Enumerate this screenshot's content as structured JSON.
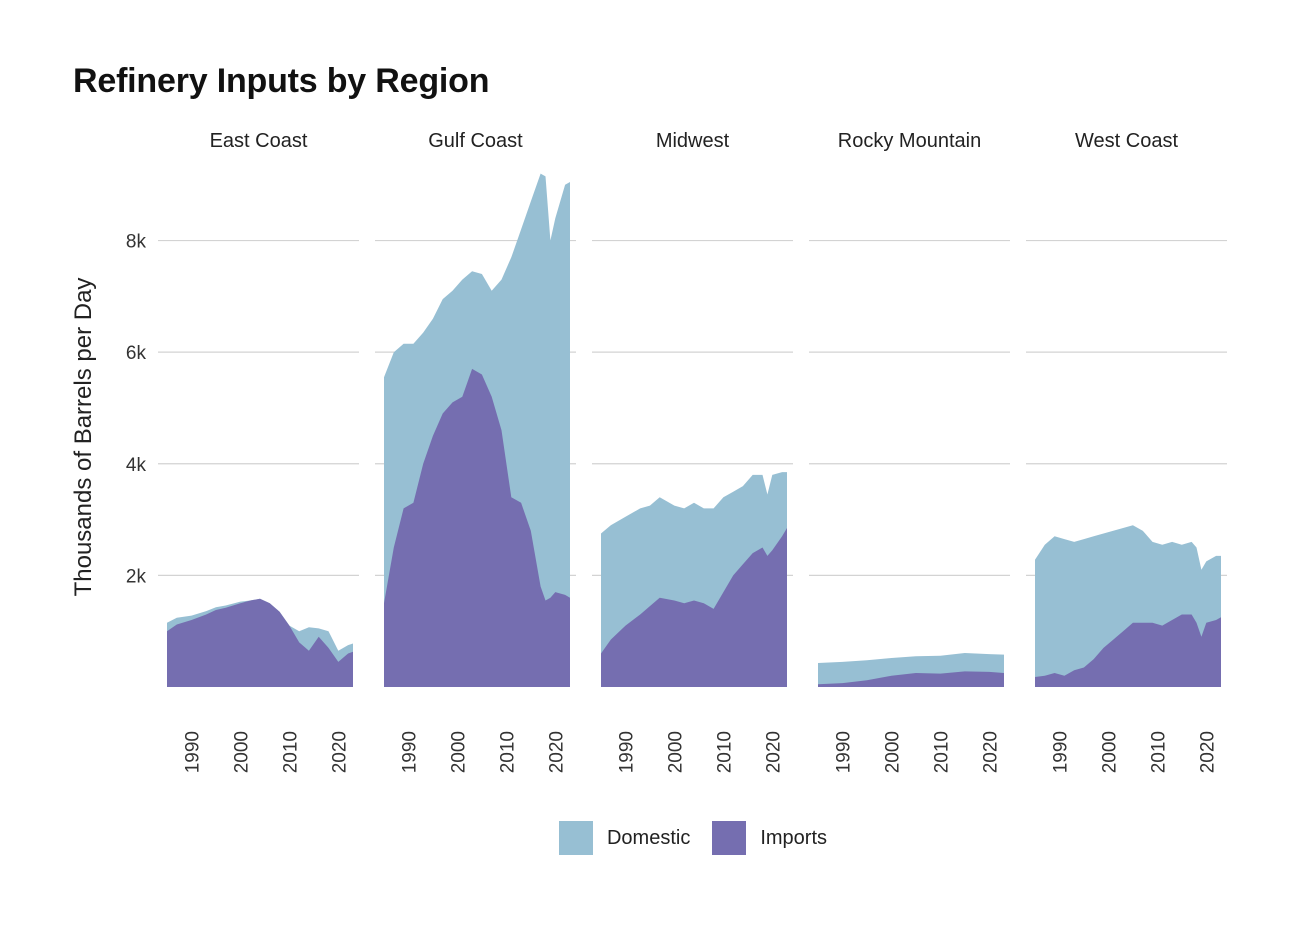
{
  "page": {
    "title": "Refinery Inputs by Region"
  },
  "chart_data": {
    "type": "area",
    "stacked": true,
    "title": "Refinery Inputs by Region",
    "ylabel": "Thousands of Barrels per Day",
    "xlabel": "",
    "ylim": [
      0,
      9300
    ],
    "yticks": [
      2000,
      4000,
      6000,
      8000
    ],
    "ytick_labels": [
      "2k",
      "4k",
      "6k",
      "8k"
    ],
    "xlim": [
      1985,
      2023
    ],
    "xticks": [
      1990,
      2000,
      2010,
      2020
    ],
    "xtick_labels": [
      "1990",
      "2000",
      "2010",
      "2020"
    ],
    "grid": true,
    "legend_position": "bottom",
    "colors": {
      "Domestic": "#97bfd3",
      "Imports": "#756eb0"
    },
    "legend": [
      "Domestic",
      "Imports"
    ],
    "series_order_bottom_to_top": [
      "Imports",
      "Domestic"
    ],
    "facets": [
      {
        "name": "East Coast",
        "years": [
          1985,
          1987,
          1990,
          1993,
          1995,
          1997,
          2000,
          2002,
          2004,
          2006,
          2008,
          2010,
          2012,
          2014,
          2016,
          2018,
          2020,
          2022,
          2023
        ],
        "imports": [
          1000,
          1120,
          1200,
          1300,
          1380,
          1420,
          1500,
          1550,
          1580,
          1500,
          1350,
          1100,
          800,
          650,
          900,
          700,
          450,
          600,
          630
        ],
        "domestic": [
          150,
          120,
          80,
          60,
          50,
          40,
          30,
          0,
          0,
          0,
          0,
          0,
          200,
          420,
          150,
          300,
          200,
          150,
          150
        ]
      },
      {
        "name": "Gulf Coast",
        "years": [
          1985,
          1987,
          1989,
          1991,
          1993,
          1995,
          1997,
          1999,
          2001,
          2003,
          2005,
          2007,
          2009,
          2011,
          2013,
          2015,
          2017,
          2018,
          2019,
          2020,
          2022,
          2023
        ],
        "imports": [
          1500,
          2500,
          3200,
          3300,
          4000,
          4500,
          4900,
          5100,
          5200,
          5700,
          5600,
          5200,
          4600,
          3400,
          3300,
          2800,
          1800,
          1550,
          1600,
          1700,
          1650,
          1600
        ],
        "domestic": [
          4050,
          3500,
          2950,
          2850,
          2350,
          2100,
          2050,
          2000,
          2100,
          1750,
          1800,
          1900,
          2700,
          4300,
          4900,
          5900,
          7400,
          7600,
          6400,
          6700,
          7350,
          7450
        ]
      },
      {
        "name": "Midwest",
        "years": [
          1985,
          1987,
          1990,
          1993,
          1995,
          1997,
          2000,
          2002,
          2004,
          2006,
          2008,
          2010,
          2012,
          2014,
          2016,
          2018,
          2019,
          2020,
          2022,
          2023
        ],
        "imports": [
          600,
          850,
          1100,
          1300,
          1450,
          1600,
          1550,
          1500,
          1550,
          1500,
          1400,
          1700,
          2000,
          2200,
          2400,
          2500,
          2350,
          2450,
          2700,
          2850
        ],
        "domestic": [
          2150,
          2050,
          1950,
          1900,
          1800,
          1800,
          1700,
          1700,
          1750,
          1700,
          1800,
          1700,
          1500,
          1400,
          1400,
          1300,
          1100,
          1350,
          1150,
          1000
        ]
      },
      {
        "name": "Rocky Mountain",
        "years": [
          1985,
          1990,
          1995,
          2000,
          2005,
          2010,
          2015,
          2020,
          2023
        ],
        "imports": [
          50,
          70,
          120,
          200,
          250,
          240,
          280,
          270,
          250
        ],
        "domestic": [
          380,
          380,
          360,
          320,
          300,
          320,
          330,
          320,
          330
        ]
      },
      {
        "name": "West Coast",
        "years": [
          1985,
          1987,
          1989,
          1991,
          1993,
          1995,
          1997,
          1999,
          2001,
          2003,
          2005,
          2007,
          2009,
          2011,
          2013,
          2015,
          2017,
          2018,
          2019,
          2020,
          2022,
          2023
        ],
        "imports": [
          180,
          200,
          250,
          200,
          300,
          350,
          500,
          700,
          850,
          1000,
          1150,
          1150,
          1150,
          1100,
          1200,
          1300,
          1300,
          1150,
          900,
          1150,
          1200,
          1250
        ],
        "domestic": [
          2100,
          2350,
          2450,
          2450,
          2300,
          2300,
          2200,
          2050,
          1950,
          1850,
          1750,
          1650,
          1450,
          1450,
          1400,
          1250,
          1300,
          1350,
          1200,
          1100,
          1150,
          1100
        ]
      }
    ]
  },
  "legend_items": [
    {
      "label": "Domestic",
      "color": "#97bfd3"
    },
    {
      "label": "Imports",
      "color": "#756eb0"
    }
  ]
}
